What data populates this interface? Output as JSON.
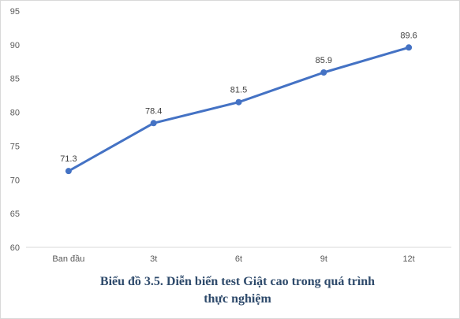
{
  "chart_data": {
    "type": "line",
    "categories": [
      "Ban đầu",
      "3t",
      "6t",
      "9t",
      "12t"
    ],
    "series": [
      {
        "values": [
          71.3,
          78.4,
          81.5,
          85.9,
          89.6
        ]
      }
    ],
    "data_labels": [
      "71.3",
      "78.4",
      "81.5",
      "85.9",
      "89.6"
    ],
    "y_ticks": [
      "60",
      "65",
      "70",
      "75",
      "80",
      "85",
      "90",
      "95"
    ],
    "ylim": [
      60,
      95
    ],
    "xlabel": "",
    "ylabel": "",
    "grid": false,
    "legend": "none",
    "line_color": "#4472c4",
    "caption_line1": "Biểu đồ 3.5. Diễn biến test Giật cao trong quá trình",
    "caption_line2": "thực nghiệm"
  }
}
